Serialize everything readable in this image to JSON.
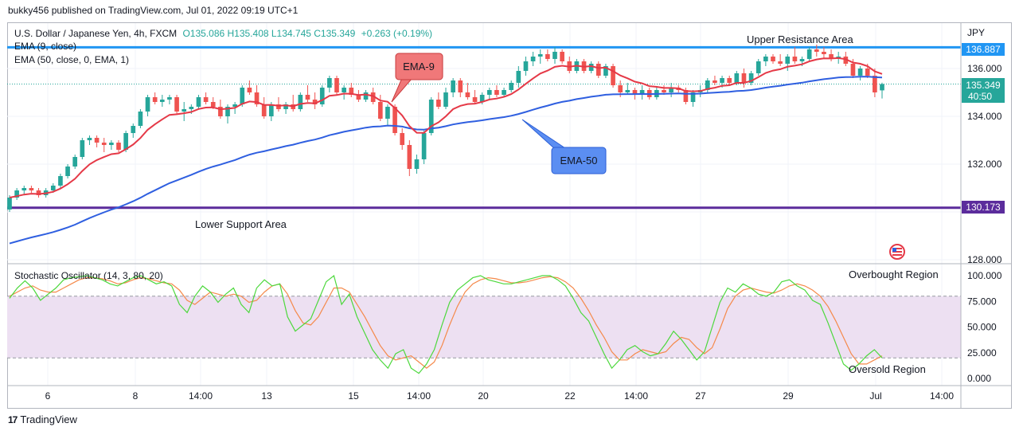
{
  "publish_line": "bukky456 published on TradingView.com, Jul 01, 2022 09:19 UTC+1",
  "footer_brand": "TradingView",
  "legend": {
    "symbol": "U.S. Dollar / Japanese Yen, 4h, FXCM",
    "ohlc": "O135.086 H135.408 L134.745 C135.349",
    "change": "+0.263 (+0.19%)",
    "ema9": "EMA (9, close)",
    "ema50": "EMA (50, close, 0, EMA, 1)"
  },
  "currency": "JPY",
  "price_axis_ticks": [
    "136.000",
    "134.000",
    "132.000",
    "128.000"
  ],
  "price_tags": {
    "resistance": "136.887",
    "last_price": "135.349",
    "countdown": "40:50",
    "support": "130.173"
  },
  "annotations": {
    "upper_resistance": "Upper Resistance Area",
    "lower_support": "Lower Support Area",
    "ema9_callout": "EMA-9",
    "ema50_callout": "EMA-50",
    "overbought": "Overbought Region",
    "oversold": "Oversold Region"
  },
  "stoch_title": "Stochastic Oscillator (14, 3, 80, 20)",
  "stoch_axis_ticks": [
    "100.000",
    "75.000",
    "50.000",
    "25.000",
    "0.000"
  ],
  "time_axis_ticks": [
    "6",
    "8",
    "14:00",
    "13",
    "15",
    "14:00",
    "20",
    "22",
    "14:00",
    "27",
    "29",
    "Jul",
    "14:00"
  ],
  "colors": {
    "bull": "#26a69a",
    "bear": "#ef5350",
    "ema9": "#e53947",
    "ema50": "#2f5fe0",
    "resistance_line": "#2196f3",
    "support_line": "#5b2c9c",
    "stoch_k": "#4cd83c",
    "stoch_d": "#f5894a",
    "band_fill": "#ede0f2"
  },
  "chart_data": {
    "type": "candlestick",
    "timeframe": "4h",
    "price_levels": {
      "resistance": 136.887,
      "support": 130.173,
      "last": 135.349
    },
    "candles": [
      [
        130.1,
        130.7,
        130.0,
        130.6
      ],
      [
        130.6,
        131.0,
        130.5,
        130.9
      ],
      [
        130.9,
        131.1,
        130.7,
        131.0
      ],
      [
        131.0,
        131.1,
        130.8,
        130.9
      ],
      [
        130.9,
        131.0,
        130.6,
        130.7
      ],
      [
        130.7,
        131.0,
        130.6,
        130.9
      ],
      [
        130.9,
        131.2,
        130.8,
        131.1
      ],
      [
        131.1,
        131.6,
        131.0,
        131.5
      ],
      [
        131.5,
        132.0,
        131.4,
        131.9
      ],
      [
        131.9,
        132.4,
        131.8,
        132.3
      ],
      [
        132.3,
        133.1,
        132.2,
        133.0
      ],
      [
        133.0,
        133.2,
        132.8,
        133.1
      ],
      [
        133.1,
        133.2,
        132.7,
        132.9
      ],
      [
        132.9,
        133.1,
        132.5,
        132.8
      ],
      [
        132.8,
        133.0,
        132.6,
        132.9
      ],
      [
        132.9,
        133.0,
        132.5,
        132.6
      ],
      [
        132.6,
        133.4,
        132.5,
        133.3
      ],
      [
        133.3,
        133.7,
        133.1,
        133.6
      ],
      [
        133.6,
        134.3,
        133.5,
        134.2
      ],
      [
        134.2,
        134.9,
        134.0,
        134.8
      ],
      [
        134.8,
        135.0,
        134.5,
        134.6
      ],
      [
        134.6,
        134.9,
        134.4,
        134.7
      ],
      [
        134.7,
        134.9,
        134.5,
        134.8
      ],
      [
        134.8,
        134.9,
        134.1,
        134.2
      ],
      [
        134.2,
        134.6,
        133.8,
        134.3
      ],
      [
        134.3,
        134.5,
        134.1,
        134.4
      ],
      [
        134.4,
        134.9,
        134.3,
        134.8
      ],
      [
        134.8,
        135.0,
        134.5,
        134.6
      ],
      [
        134.6,
        134.8,
        134.3,
        134.4
      ],
      [
        134.4,
        134.7,
        133.9,
        134.0
      ],
      [
        134.0,
        134.5,
        133.7,
        134.4
      ],
      [
        134.4,
        134.6,
        134.1,
        134.5
      ],
      [
        134.5,
        135.3,
        134.4,
        135.2
      ],
      [
        135.2,
        135.5,
        134.9,
        135.0
      ],
      [
        135.0,
        135.3,
        134.4,
        134.5
      ],
      [
        134.5,
        134.8,
        133.9,
        134.0
      ],
      [
        134.0,
        134.6,
        133.8,
        134.5
      ],
      [
        134.5,
        134.8,
        134.2,
        134.3
      ],
      [
        134.3,
        134.6,
        134.1,
        134.5
      ],
      [
        134.5,
        134.9,
        134.2,
        134.3
      ],
      [
        134.3,
        135.0,
        134.2,
        134.9
      ],
      [
        134.9,
        135.3,
        134.6,
        134.7
      ],
      [
        134.7,
        135.0,
        134.3,
        134.5
      ],
      [
        134.5,
        135.3,
        134.4,
        135.2
      ],
      [
        135.2,
        135.7,
        135.0,
        135.6
      ],
      [
        135.6,
        135.7,
        134.9,
        135.0
      ],
      [
        135.0,
        135.3,
        134.7,
        135.2
      ],
      [
        135.2,
        135.4,
        134.8,
        134.9
      ],
      [
        134.9,
        135.1,
        134.6,
        134.7
      ],
      [
        134.7,
        135.1,
        134.6,
        135.0
      ],
      [
        135.0,
        135.2,
        134.5,
        134.6
      ],
      [
        134.6,
        134.9,
        133.8,
        133.9
      ],
      [
        133.9,
        134.5,
        133.6,
        134.4
      ],
      [
        134.4,
        134.5,
        133.2,
        133.3
      ],
      [
        133.3,
        133.5,
        132.6,
        132.8
      ],
      [
        132.8,
        133.0,
        131.5,
        131.8
      ],
      [
        131.8,
        132.4,
        131.6,
        132.2
      ],
      [
        132.2,
        133.4,
        132.0,
        133.3
      ],
      [
        133.3,
        134.8,
        133.2,
        134.7
      ],
      [
        134.7,
        135.0,
        134.3,
        134.4
      ],
      [
        134.4,
        135.2,
        134.3,
        135.0
      ],
      [
        135.0,
        135.6,
        134.8,
        135.5
      ],
      [
        135.5,
        135.6,
        134.8,
        135.0
      ],
      [
        135.0,
        135.4,
        134.7,
        134.8
      ],
      [
        134.8,
        135.1,
        134.5,
        134.6
      ],
      [
        134.6,
        135.0,
        134.5,
        134.9
      ],
      [
        134.9,
        135.2,
        134.7,
        135.1
      ],
      [
        135.1,
        135.3,
        134.8,
        134.9
      ],
      [
        134.9,
        135.2,
        134.8,
        135.1
      ],
      [
        135.1,
        135.5,
        135.0,
        135.4
      ],
      [
        135.4,
        136.1,
        135.2,
        135.9
      ],
      [
        135.9,
        136.5,
        135.7,
        136.3
      ],
      [
        136.3,
        136.7,
        136.1,
        136.5
      ],
      [
        136.5,
        136.8,
        136.2,
        136.6
      ],
      [
        136.6,
        136.8,
        136.3,
        136.4
      ],
      [
        136.4,
        136.9,
        136.2,
        136.7
      ],
      [
        136.7,
        136.8,
        136.2,
        136.3
      ],
      [
        136.3,
        136.5,
        135.8,
        135.9
      ],
      [
        135.9,
        136.4,
        135.8,
        136.3
      ],
      [
        136.3,
        136.4,
        135.8,
        135.9
      ],
      [
        135.9,
        136.3,
        135.8,
        136.2
      ],
      [
        136.2,
        136.3,
        135.6,
        135.7
      ],
      [
        135.7,
        136.2,
        135.6,
        136.1
      ],
      [
        136.1,
        136.2,
        135.2,
        135.3
      ],
      [
        135.3,
        135.5,
        134.8,
        135.0
      ],
      [
        135.0,
        135.4,
        134.9,
        135.1
      ],
      [
        135.1,
        135.2,
        134.7,
        134.9
      ],
      [
        134.9,
        135.3,
        134.7,
        135.1
      ],
      [
        135.1,
        135.2,
        134.7,
        134.8
      ],
      [
        134.8,
        135.2,
        134.7,
        135.1
      ],
      [
        135.1,
        135.3,
        134.9,
        135.0
      ],
      [
        135.0,
        135.4,
        134.8,
        135.2
      ],
      [
        135.2,
        135.3,
        135.0,
        135.1
      ],
      [
        135.1,
        135.2,
        134.5,
        134.6
      ],
      [
        134.6,
        135.1,
        134.4,
        135.0
      ],
      [
        135.0,
        135.3,
        134.8,
        135.1
      ],
      [
        135.1,
        135.6,
        135.0,
        135.5
      ],
      [
        135.5,
        135.7,
        135.3,
        135.4
      ],
      [
        135.4,
        135.7,
        135.2,
        135.6
      ],
      [
        135.6,
        135.7,
        135.3,
        135.4
      ],
      [
        135.4,
        135.9,
        135.3,
        135.8
      ],
      [
        135.8,
        136.0,
        135.2,
        135.4
      ],
      [
        135.4,
        135.9,
        135.3,
        135.8
      ],
      [
        135.8,
        136.4,
        135.7,
        136.3
      ],
      [
        136.3,
        136.6,
        136.1,
        136.5
      ],
      [
        136.5,
        136.6,
        136.2,
        136.3
      ],
      [
        136.3,
        136.6,
        136.1,
        136.2
      ],
      [
        136.2,
        136.6,
        135.9,
        136.5
      ],
      [
        136.5,
        136.9,
        136.2,
        136.3
      ],
      [
        136.3,
        136.5,
        136.1,
        136.4
      ],
      [
        136.4,
        136.9,
        136.3,
        136.8
      ],
      [
        136.8,
        137.0,
        136.5,
        136.7
      ],
      [
        136.7,
        136.9,
        136.4,
        136.6
      ],
      [
        136.6,
        136.8,
        136.3,
        136.4
      ],
      [
        136.4,
        136.7,
        136.2,
        136.5
      ],
      [
        136.5,
        136.7,
        136.1,
        136.2
      ],
      [
        136.2,
        136.4,
        135.6,
        135.7
      ],
      [
        135.7,
        136.1,
        135.5,
        136.0
      ],
      [
        136.0,
        136.2,
        135.6,
        135.7
      ],
      [
        135.7,
        136.0,
        134.8,
        135.0
      ],
      [
        135.086,
        135.408,
        134.745,
        135.349
      ]
    ],
    "stochastic": {
      "k": [
        78,
        88,
        95,
        88,
        76,
        82,
        88,
        96,
        98,
        99,
        100,
        98,
        96,
        92,
        90,
        94,
        98,
        100,
        96,
        92,
        94,
        90,
        72,
        64,
        80,
        90,
        84,
        74,
        82,
        88,
        72,
        64,
        88,
        96,
        90,
        92,
        60,
        46,
        52,
        58,
        76,
        94,
        100,
        72,
        82,
        60,
        44,
        28,
        18,
        10,
        24,
        28,
        10,
        5,
        14,
        28,
        52,
        74,
        86,
        92,
        98,
        100,
        96,
        94,
        92,
        92,
        94,
        96,
        98,
        100,
        100,
        96,
        90,
        78,
        64,
        56,
        40,
        24,
        10,
        18,
        28,
        32,
        26,
        22,
        24,
        34,
        46,
        38,
        28,
        18,
        26,
        50,
        74,
        88,
        84,
        92,
        88,
        82,
        80,
        84,
        94,
        96,
        90,
        86,
        76,
        72,
        54,
        34,
        14,
        8,
        14,
        22,
        28,
        20
      ],
      "d": [
        80,
        84,
        88,
        90,
        86,
        84,
        84,
        88,
        92,
        96,
        98,
        98,
        97,
        95,
        92,
        93,
        96,
        98,
        97,
        95,
        93,
        92,
        86,
        76,
        72,
        78,
        84,
        82,
        80,
        82,
        80,
        74,
        76,
        84,
        90,
        92,
        82,
        66,
        54,
        52,
        60,
        74,
        88,
        88,
        84,
        72,
        60,
        46,
        32,
        22,
        18,
        20,
        22,
        16,
        10,
        16,
        32,
        52,
        70,
        84,
        92,
        96,
        98,
        97,
        95,
        93,
        93,
        94,
        96,
        98,
        99,
        98,
        94,
        88,
        78,
        66,
        52,
        40,
        26,
        18,
        18,
        24,
        28,
        26,
        24,
        26,
        34,
        40,
        38,
        30,
        24,
        30,
        48,
        68,
        80,
        86,
        88,
        86,
        84,
        83,
        86,
        90,
        92,
        90,
        86,
        80,
        70,
        56,
        40,
        24,
        14,
        14,
        18,
        22
      ],
      "upper_band": 80,
      "lower_band": 20
    }
  }
}
